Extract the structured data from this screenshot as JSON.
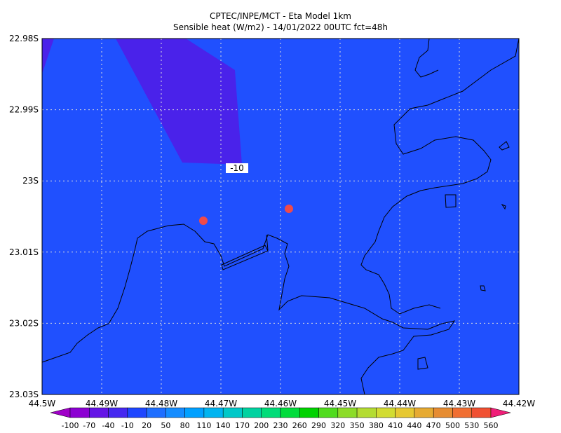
{
  "header": {
    "title": "CPTEC/INPE/MCT -  Eta Model 1km",
    "subtitle": "Sensible heat (W/m2) - 14/01/2022 00UTC fct=48h"
  },
  "map": {
    "x_labels": [
      "44.5W",
      "44.49W",
      "44.48W",
      "44.47W",
      "44.46W",
      "44.45W",
      "44.44W",
      "44.43W",
      "44.42W"
    ],
    "y_labels": [
      "22.98S",
      "22.99S",
      "23S",
      "23.01S",
      "23.02S",
      "23.03S"
    ],
    "contour_label": "-10"
  },
  "colorbar": {
    "labels": [
      "-100",
      "-70",
      "-40",
      "-10",
      "20",
      "50",
      "80",
      "110",
      "140",
      "170",
      "200",
      "230",
      "260",
      "290",
      "320",
      "350",
      "380",
      "410",
      "440",
      "470",
      "500",
      "530",
      "560"
    ],
    "colors": [
      "#a000c8",
      "#8c00d2",
      "#6414e6",
      "#4628f0",
      "#1e46ff",
      "#1e6eff",
      "#148cff",
      "#00a0ff",
      "#00b4f0",
      "#00c8c8",
      "#00d2a0",
      "#00dc78",
      "#00dc3c",
      "#00d200",
      "#50dc1e",
      "#8cdc28",
      "#b4dc32",
      "#d2dc32",
      "#e6c832",
      "#e6aa32",
      "#e68c32",
      "#f06e32",
      "#f05032",
      "#f01e78"
    ]
  }
}
